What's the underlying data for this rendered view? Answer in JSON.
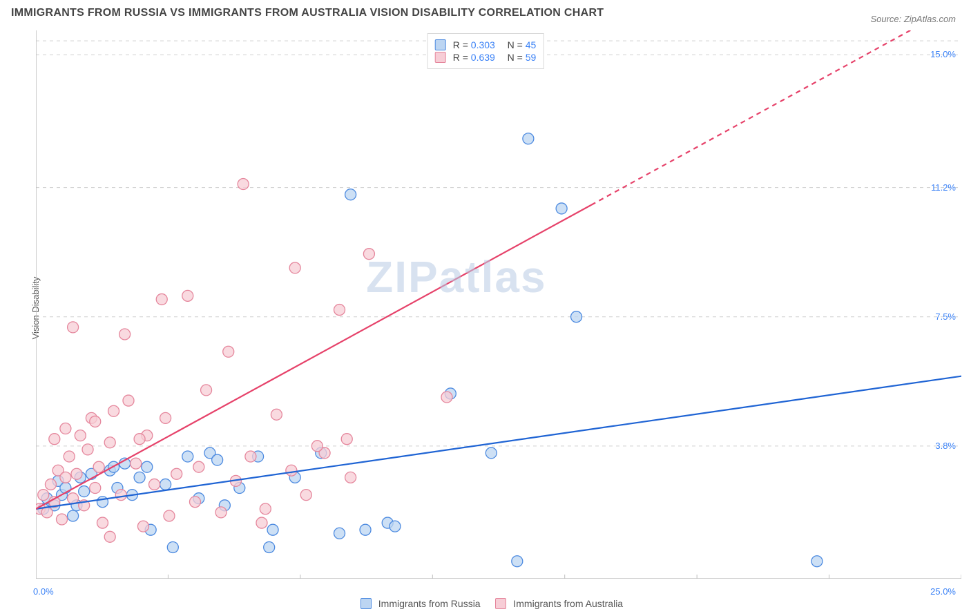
{
  "title": "IMMIGRANTS FROM RUSSIA VS IMMIGRANTS FROM AUSTRALIA VISION DISABILITY CORRELATION CHART",
  "source": "Source: ZipAtlas.com",
  "ylabel": "Vision Disability",
  "watermark": {
    "text": "ZIPatlas",
    "color": "#b9cbe4",
    "opacity": 0.55,
    "fontsize": 64
  },
  "chart": {
    "type": "scatter",
    "xlim": [
      0,
      25
    ],
    "ylim": [
      0,
      15.7
    ],
    "x_origin_label": "0.0%",
    "x_max_label": "25.0%",
    "y_ticks": [
      {
        "value": 3.8,
        "label": "3.8%"
      },
      {
        "value": 7.5,
        "label": "7.5%"
      },
      {
        "value": 11.2,
        "label": "11.2%"
      },
      {
        "value": 15.0,
        "label": "15.0%"
      }
    ],
    "grid_color": "#cfcfcf",
    "axis_color": "#bdbdbd",
    "background_color": "#ffffff",
    "marker_radius": 8,
    "marker_stroke_width": 1.3,
    "trend_line_width": 2.2,
    "series": [
      {
        "id": "russia",
        "label": "Immigrants from Russia",
        "fill": "#bcd5f2",
        "stroke": "#4c8ae0",
        "line_color": "#1f64d4",
        "R": "0.303",
        "N": "45",
        "trend": {
          "x1": 0,
          "y1": 2.0,
          "x2": 25.0,
          "y2": 5.8,
          "dashed_after_x": null
        },
        "points": [
          [
            0.2,
            2.0
          ],
          [
            0.3,
            2.3
          ],
          [
            0.5,
            2.1
          ],
          [
            0.6,
            2.8
          ],
          [
            0.7,
            2.4
          ],
          [
            0.8,
            2.6
          ],
          [
            1.0,
            1.8
          ],
          [
            1.2,
            2.9
          ],
          [
            1.3,
            2.5
          ],
          [
            1.5,
            3.0
          ],
          [
            1.8,
            2.2
          ],
          [
            2.0,
            3.1
          ],
          [
            2.2,
            2.6
          ],
          [
            2.4,
            3.3
          ],
          [
            2.6,
            2.4
          ],
          [
            2.8,
            2.9
          ],
          [
            3.0,
            3.2
          ],
          [
            3.1,
            1.4
          ],
          [
            3.5,
            2.7
          ],
          [
            3.7,
            0.9
          ],
          [
            4.1,
            3.5
          ],
          [
            4.4,
            2.3
          ],
          [
            4.7,
            3.6
          ],
          [
            5.1,
            2.1
          ],
          [
            5.5,
            2.6
          ],
          [
            6.0,
            3.5
          ],
          [
            6.4,
            1.4
          ],
          [
            7.0,
            2.9
          ],
          [
            7.7,
            3.6
          ],
          [
            8.2,
            1.3
          ],
          [
            8.5,
            11.0
          ],
          [
            8.9,
            1.4
          ],
          [
            9.5,
            1.6
          ],
          [
            9.7,
            1.5
          ],
          [
            11.2,
            5.3
          ],
          [
            12.3,
            3.6
          ],
          [
            13.0,
            0.5
          ],
          [
            14.2,
            10.6
          ],
          [
            14.6,
            7.5
          ],
          [
            13.3,
            12.6
          ],
          [
            21.1,
            0.5
          ],
          [
            6.3,
            0.9
          ],
          [
            4.9,
            3.4
          ],
          [
            2.1,
            3.2
          ],
          [
            1.1,
            2.1
          ]
        ]
      },
      {
        "id": "australia",
        "label": "Immigrants from Australia",
        "fill": "#f7cdd6",
        "stroke": "#e5869c",
        "line_color": "#e6426a",
        "R": "0.639",
        "N": "59",
        "trend": {
          "x1": 0,
          "y1": 2.0,
          "x2": 25.0,
          "y2": 16.5,
          "dashed_after_x": 15.0
        },
        "points": [
          [
            0.1,
            2.0
          ],
          [
            0.2,
            2.4
          ],
          [
            0.3,
            1.9
          ],
          [
            0.4,
            2.7
          ],
          [
            0.5,
            2.2
          ],
          [
            0.6,
            3.1
          ],
          [
            0.7,
            1.7
          ],
          [
            0.8,
            2.9
          ],
          [
            0.9,
            3.5
          ],
          [
            1.0,
            2.3
          ],
          [
            1.1,
            3.0
          ],
          [
            1.2,
            4.1
          ],
          [
            1.3,
            2.1
          ],
          [
            1.4,
            3.7
          ],
          [
            1.5,
            4.6
          ],
          [
            1.6,
            2.6
          ],
          [
            1.7,
            3.2
          ],
          [
            1.8,
            1.6
          ],
          [
            2.0,
            3.9
          ],
          [
            2.1,
            4.8
          ],
          [
            2.3,
            2.4
          ],
          [
            2.5,
            5.1
          ],
          [
            2.7,
            3.3
          ],
          [
            2.9,
            1.5
          ],
          [
            3.0,
            4.1
          ],
          [
            3.2,
            2.7
          ],
          [
            3.5,
            4.6
          ],
          [
            3.8,
            3.0
          ],
          [
            4.1,
            8.1
          ],
          [
            4.3,
            2.2
          ],
          [
            4.6,
            5.4
          ],
          [
            5.0,
            1.9
          ],
          [
            5.2,
            6.5
          ],
          [
            5.6,
            11.3
          ],
          [
            5.8,
            3.5
          ],
          [
            6.2,
            2.0
          ],
          [
            6.5,
            4.7
          ],
          [
            7.0,
            8.9
          ],
          [
            7.3,
            2.4
          ],
          [
            7.8,
            3.6
          ],
          [
            8.2,
            7.7
          ],
          [
            8.5,
            2.9
          ],
          [
            9.0,
            9.3
          ],
          [
            1.0,
            7.2
          ],
          [
            2.4,
            7.0
          ],
          [
            3.4,
            8.0
          ],
          [
            1.6,
            4.5
          ],
          [
            0.5,
            4.0
          ],
          [
            0.8,
            4.3
          ],
          [
            2.0,
            1.2
          ],
          [
            2.8,
            4.0
          ],
          [
            3.6,
            1.8
          ],
          [
            4.4,
            3.2
          ],
          [
            5.4,
            2.8
          ],
          [
            6.1,
            1.6
          ],
          [
            6.9,
            3.1
          ],
          [
            7.6,
            3.8
          ],
          [
            8.4,
            4.0
          ],
          [
            11.1,
            5.2
          ]
        ]
      }
    ]
  },
  "legend_bottom": [
    {
      "label": "Immigrants from Russia",
      "fill": "#bcd5f2",
      "stroke": "#4c8ae0"
    },
    {
      "label": "Immigrants from Australia",
      "fill": "#f7cdd6",
      "stroke": "#e5869c"
    }
  ],
  "legend_top_labels": {
    "R": "R =",
    "N": "N ="
  }
}
